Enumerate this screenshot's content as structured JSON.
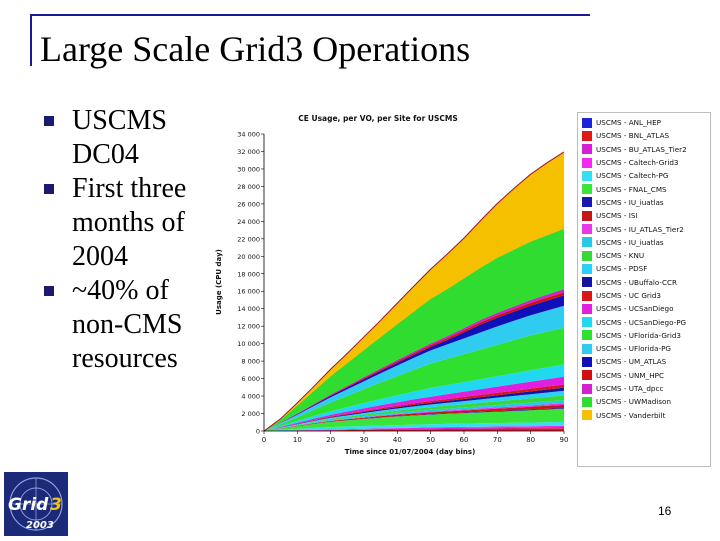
{
  "slide": {
    "title": "Large Scale Grid3 Operations",
    "bullets": [
      "USCMS DC04",
      "First three months of 2004",
      "~40% of non-CMS resources"
    ],
    "page_number": "16",
    "logo_text_top": "Grid",
    "logo_text_bottom": "2003",
    "logo_digit": "3"
  },
  "chart_data": {
    "type": "area",
    "title": "CE Usage, per VO, per Site for USCMS",
    "xlabel": "Time since 01/07/2004 (day bins)",
    "ylabel": "Usage (CPU day)",
    "xlim": [
      0,
      90
    ],
    "ylim": [
      0,
      34000
    ],
    "xticks": [
      0,
      10,
      20,
      30,
      40,
      50,
      60,
      70,
      80,
      90
    ],
    "yticks": [
      0,
      2000,
      4000,
      6000,
      8000,
      10000,
      12000,
      14000,
      16000,
      18000,
      20000,
      22000,
      24000,
      26000,
      28000,
      30000,
      32000,
      34000
    ],
    "ytick_labels": [
      "0",
      "2 000",
      "4 000",
      "6 000",
      "8 000",
      "10 000",
      "12 000",
      "14 000",
      "16 000",
      "18 000",
      "20 000",
      "22 000",
      "24 000",
      "26 000",
      "28 000",
      "30 000",
      "32 000",
      "34 000"
    ],
    "grid": false,
    "legend_position": "right",
    "x": [
      0,
      5,
      10,
      15,
      20,
      25,
      30,
      35,
      40,
      45,
      50,
      55,
      60,
      65,
      70,
      75,
      80,
      85,
      90
    ],
    "series": [
      {
        "name": "USCMS - ANL_HEP",
        "color": "#1c24d6",
        "values": [
          0,
          2,
          5,
          8,
          10,
          12,
          14,
          16,
          18,
          20,
          22,
          24,
          26,
          28,
          30,
          32,
          34,
          36,
          38
        ]
      },
      {
        "name": "USCMS - BNL_ATLAS",
        "color": "#e01818",
        "values": [
          0,
          20,
          40,
          60,
          80,
          100,
          120,
          140,
          160,
          180,
          200,
          210,
          220,
          230,
          240,
          250,
          260,
          270,
          280
        ]
      },
      {
        "name": "USCMS - BU_ATLAS_Tier2",
        "color": "#d41fd4",
        "values": [
          0,
          10,
          20,
          30,
          40,
          50,
          60,
          70,
          80,
          90,
          100,
          105,
          110,
          115,
          120,
          125,
          130,
          135,
          140
        ]
      },
      {
        "name": "USCMS - Caltech-Grid3",
        "color": "#f028f0",
        "values": [
          0,
          10,
          20,
          30,
          40,
          50,
          60,
          70,
          80,
          90,
          100,
          105,
          110,
          115,
          120,
          125,
          130,
          135,
          140
        ]
      },
      {
        "name": "USCMS - Caltech-PG",
        "color": "#34e0f0",
        "values": [
          0,
          80,
          160,
          230,
          280,
          300,
          320,
          330,
          340,
          350,
          360,
          370,
          380,
          390,
          400,
          410,
          420,
          430,
          440
        ]
      },
      {
        "name": "USCMS - FNAL_CMS",
        "color": "#3ae43a",
        "values": [
          0,
          150,
          300,
          450,
          600,
          700,
          800,
          900,
          980,
          1050,
          1100,
          1150,
          1200,
          1250,
          1300,
          1350,
          1400,
          1450,
          1500
        ]
      },
      {
        "name": "USCMS - IU_iuatlas",
        "color": "#1818b0",
        "values": [
          0,
          5,
          10,
          15,
          20,
          25,
          30,
          35,
          40,
          45,
          50,
          55,
          60,
          65,
          70,
          75,
          80,
          85,
          90
        ]
      },
      {
        "name": "USCMS - ISI",
        "color": "#c41818",
        "values": [
          0,
          20,
          40,
          60,
          80,
          100,
          120,
          140,
          160,
          180,
          200,
          220,
          240,
          260,
          280,
          300,
          320,
          340,
          360
        ]
      },
      {
        "name": "USCMS - IU_ATLAS_Tier2",
        "color": "#e838e8",
        "values": [
          0,
          10,
          20,
          30,
          40,
          50,
          60,
          70,
          80,
          90,
          100,
          110,
          120,
          130,
          140,
          150,
          160,
          170,
          180
        ]
      },
      {
        "name": "USCMS - IU_iuatlas",
        "color": "#28c8e8",
        "values": [
          0,
          20,
          40,
          60,
          80,
          100,
          120,
          140,
          160,
          180,
          200,
          220,
          240,
          260,
          280,
          300,
          320,
          340,
          360
        ]
      },
      {
        "name": "USCMS - KNU",
        "color": "#38d838",
        "values": [
          0,
          30,
          60,
          90,
          120,
          150,
          180,
          210,
          240,
          270,
          300,
          330,
          360,
          390,
          420,
          450,
          480,
          510,
          540
        ]
      },
      {
        "name": "USCMS - PDSF",
        "color": "#2ad0f8",
        "values": [
          0,
          30,
          60,
          90,
          120,
          150,
          180,
          210,
          240,
          270,
          300,
          330,
          360,
          390,
          420,
          450,
          480,
          510,
          540
        ]
      },
      {
        "name": "USCMS - UBuffalo-CCR",
        "color": "#1414a0",
        "values": [
          0,
          20,
          40,
          60,
          80,
          100,
          120,
          140,
          160,
          180,
          200,
          220,
          240,
          260,
          280,
          300,
          320,
          340,
          360
        ]
      },
      {
        "name": "USCMS - UC Grid3",
        "color": "#d81818",
        "values": [
          0,
          20,
          40,
          60,
          80,
          100,
          120,
          140,
          160,
          180,
          200,
          220,
          240,
          260,
          280,
          300,
          320,
          340,
          360
        ]
      },
      {
        "name": "USCMS - UCSanDiego",
        "color": "#e020e0",
        "values": [
          0,
          50,
          100,
          150,
          200,
          250,
          300,
          350,
          400,
          450,
          500,
          550,
          600,
          650,
          700,
          750,
          800,
          850,
          900
        ]
      },
      {
        "name": "USCMS - UCSanDiego-PG",
        "color": "#20d8f0",
        "values": [
          0,
          100,
          200,
          300,
          400,
          500,
          600,
          700,
          800,
          900,
          1000,
          1050,
          1100,
          1150,
          1200,
          1250,
          1300,
          1350,
          1400
        ]
      },
      {
        "name": "USCMS - UFlorida-Grid3",
        "color": "#30e030",
        "values": [
          0,
          200,
          400,
          700,
          1000,
          1300,
          1600,
          1900,
          2200,
          2500,
          2800,
          3000,
          3200,
          3400,
          3600,
          3800,
          4000,
          4100,
          4200
        ]
      },
      {
        "name": "USCMS - UFlorida-PG",
        "color": "#30ccf0",
        "values": [
          0,
          150,
          300,
          450,
          600,
          750,
          900,
          1050,
          1200,
          1350,
          1500,
          1650,
          1800,
          1950,
          2100,
          2200,
          2300,
          2400,
          2500
        ]
      },
      {
        "name": "USCMS - UM_ATLAS",
        "color": "#1010b8",
        "values": [
          0,
          40,
          80,
          120,
          160,
          200,
          240,
          280,
          320,
          360,
          400,
          500,
          700,
          900,
          1000,
          1050,
          1100,
          1150,
          1200
        ]
      },
      {
        "name": "USCMS - UNM_HPC",
        "color": "#d01010",
        "values": [
          0,
          20,
          40,
          60,
          80,
          100,
          120,
          140,
          160,
          180,
          200,
          220,
          240,
          260,
          280,
          300,
          320,
          340,
          360
        ]
      },
      {
        "name": "USCMS - UTA_dpcc",
        "color": "#d020d0",
        "values": [
          0,
          20,
          40,
          60,
          80,
          100,
          120,
          140,
          160,
          180,
          200,
          220,
          240,
          260,
          280,
          300,
          320,
          340,
          360
        ]
      },
      {
        "name": "USCMS - UWMadison",
        "color": "#30dc30",
        "values": [
          0,
          300,
          900,
          1500,
          2100,
          2600,
          3100,
          3600,
          4100,
          4600,
          5100,
          5400,
          5700,
          6000,
          6300,
          6500,
          6700,
          6800,
          6900
        ]
      },
      {
        "name": "USCMS - Vanderbilt",
        "color": "#f4c000",
        "values": [
          0,
          100,
          300,
          500,
          800,
          1100,
          1500,
          1900,
          2400,
          2900,
          3400,
          4000,
          4600,
          5400,
          6200,
          7000,
          7700,
          8300,
          8800
        ]
      }
    ]
  }
}
